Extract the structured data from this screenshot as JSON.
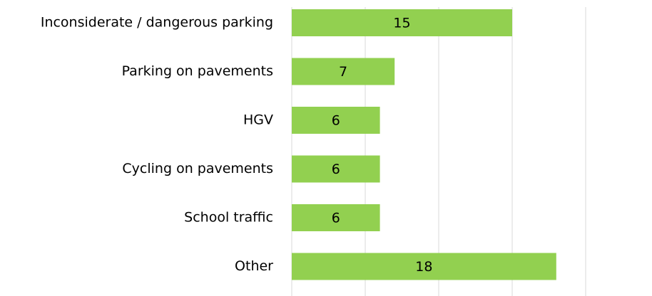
{
  "chart_data": {
    "type": "bar",
    "orientation": "horizontal",
    "categories": [
      "Inconsiderate / dangerous parking",
      "Parking on pavements",
      "HGV",
      "Cycling on pavements",
      "School traffic",
      "Other"
    ],
    "values": [
      15,
      7,
      6,
      6,
      6,
      18
    ],
    "color": "#92d050",
    "xlim": [
      0,
      20
    ],
    "xticks": [
      0,
      5,
      10,
      15,
      20
    ],
    "grid": true,
    "data_labels": true
  }
}
